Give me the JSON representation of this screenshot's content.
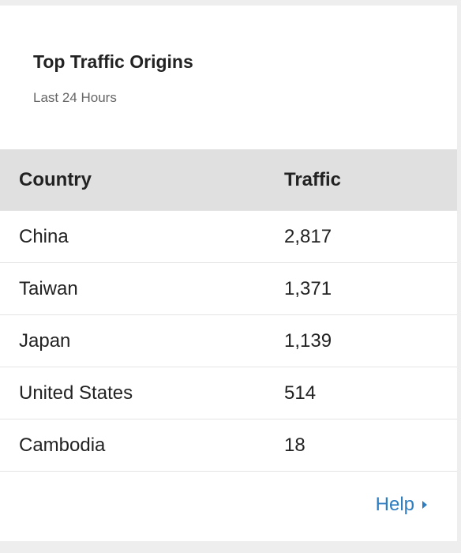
{
  "widget": {
    "title": "Top Traffic Origins",
    "subtitle": "Last 24 Hours"
  },
  "table": {
    "headers": {
      "country": "Country",
      "traffic": "Traffic"
    },
    "rows": [
      {
        "country": "China",
        "traffic": "2,817"
      },
      {
        "country": "Taiwan",
        "traffic": "1,371"
      },
      {
        "country": "Japan",
        "traffic": "1,139"
      },
      {
        "country": "United States",
        "traffic": "514"
      },
      {
        "country": "Cambodia",
        "traffic": "18"
      }
    ]
  },
  "footer": {
    "help_label": "Help"
  },
  "colors": {
    "link": "#2e7dc1",
    "header_bg": "#e0e0e0"
  }
}
